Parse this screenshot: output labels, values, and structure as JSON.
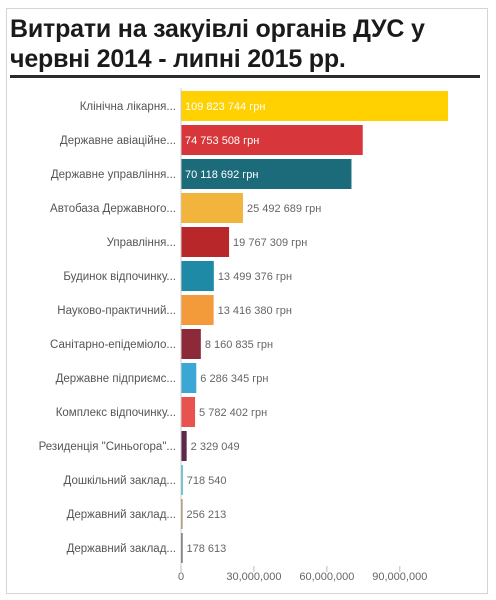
{
  "chart_data": {
    "type": "bar",
    "orientation": "horizontal",
    "title": "Витрати на закуівлі органів ДУС у червні 2014 - липні 2015 рр.",
    "xlabel": "",
    "ylabel": "",
    "xlim": [
      0,
      115000000
    ],
    "x_ticks": [
      0,
      30000000,
      60000000,
      90000000
    ],
    "x_tick_labels": [
      "0",
      "30,000,000",
      "60,000,000",
      "90,000,000"
    ],
    "grid": false,
    "legend": "none",
    "categories": [
      "Клінічна лікарня...",
      "Державне авіаційне...",
      "Державне управління...",
      "Автобаза Державного...",
      "Управління...",
      "Будинок відпочинку...",
      "Науково-практичний...",
      "Санітарно-епідеміоло...",
      "Державне підприємс...",
      "Комплекс відпочинку...",
      "Резиденція \"Синьогора\"...",
      "Дошкільний заклад...",
      "Державний заклад...",
      "Державний заклад..."
    ],
    "values": [
      109823744,
      74753508,
      70118692,
      25492689,
      19767309,
      13499376,
      13416380,
      8160835,
      6286345,
      5782402,
      2329049,
      718540,
      256213,
      178613
    ],
    "value_labels": [
      "109 823 744 грн",
      "74 753 508 грн",
      "70 118 692 грн",
      "25 492 689 грн",
      "19 767 309 грн",
      "13 499 376 грн",
      "13 416 380 грн",
      "8 160 835 грн",
      "6 286 345 грн",
      "5 782 402 грн",
      "2 329 049",
      "718 540",
      "256 213",
      "178 613"
    ],
    "colors": [
      "#ffd100",
      "#d7373a",
      "#1c6b7a",
      "#f2b43c",
      "#b8282b",
      "#1e8aa6",
      "#f39a3b",
      "#8c2a3a",
      "#3aa7d4",
      "#e8524f",
      "#5a2a4a",
      "#3bb5c8",
      "#9a7a50",
      "#444444"
    ],
    "label_inside": [
      true,
      true,
      true,
      false,
      false,
      false,
      false,
      false,
      false,
      false,
      false,
      false,
      false,
      false
    ]
  }
}
